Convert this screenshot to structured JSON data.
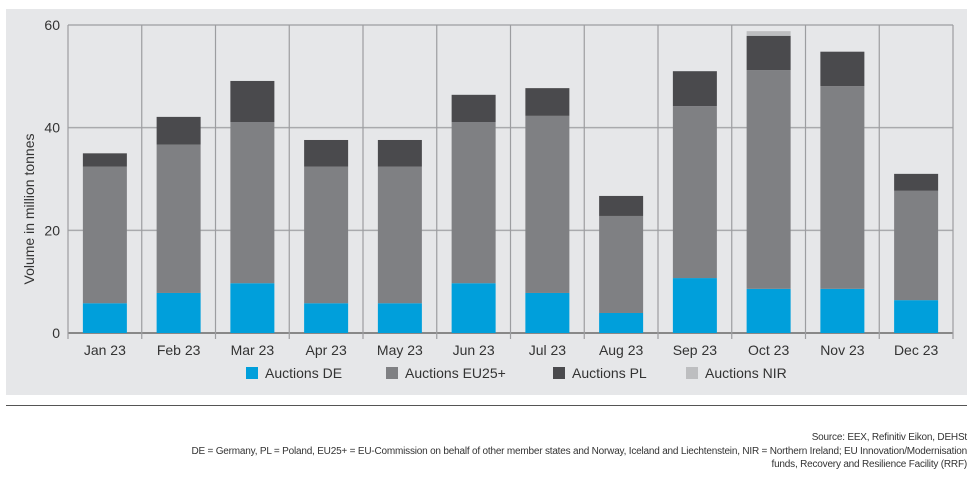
{
  "chart_data": {
    "type": "bar",
    "stacked": true,
    "title": "",
    "xlabel": "",
    "ylabel": "Volume in million tonnes",
    "ylim": [
      0,
      60
    ],
    "yticks": [
      0,
      20,
      40,
      60
    ],
    "grid": true,
    "legend_position": "bottom",
    "categories": [
      "Jan 23",
      "Feb 23",
      "Mar 23",
      "Apr 23",
      "May 23",
      "Jun 23",
      "Jul 23",
      "Aug 23",
      "Sep 23",
      "Oct 23",
      "Nov 23",
      "Dec 23"
    ],
    "series": [
      {
        "name": "Auctions DE",
        "color": "#009fdb",
        "values": [
          5.8,
          7.8,
          9.7,
          5.8,
          5.8,
          9.7,
          7.8,
          3.9,
          10.7,
          8.6,
          8.6,
          6.4
        ]
      },
      {
        "name": "Auctions EU25+",
        "color": "#7f8083",
        "values": [
          26.6,
          28.9,
          31.4,
          26.6,
          26.6,
          31.4,
          34.5,
          18.9,
          33.5,
          42.6,
          39.5,
          21.3
        ]
      },
      {
        "name": "Auctions PL",
        "color": "#4a4a4d",
        "values": [
          2.6,
          5.4,
          8.0,
          5.2,
          5.2,
          5.3,
          5.4,
          3.9,
          6.8,
          6.7,
          6.7,
          3.3
        ]
      },
      {
        "name": "Auctions NIR",
        "color": "#bdbec0",
        "values": [
          0,
          0,
          0,
          0,
          0,
          0,
          0,
          0,
          0,
          0.9,
          0,
          0
        ]
      }
    ]
  },
  "footer": {
    "source": "Source: EEX, Refinitiv Eikon, DEHSt",
    "note_line1": "DE = Germany, PL = Poland, EU25+ = EU-Commission on behalf of other member states and Norway, Iceland and Liechtenstein, NIR = Northern Ireland; EU Innovation/Modernisation",
    "note_line2": "funds, Recovery and Resilience Facility (RRF)"
  }
}
